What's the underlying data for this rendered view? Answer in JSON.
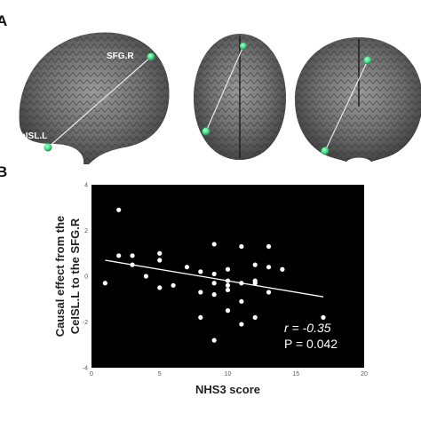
{
  "figure": {
    "panel_a_letter": "A",
    "panel_b_letter": "B"
  },
  "brain": {
    "region_top_label": "SFG.R",
    "region_bottom_label": "CeISL.L",
    "node_color": "#3ddc84",
    "background_color": "#000000"
  },
  "chart_data": {
    "type": "scatter",
    "xlabel": "NHS3 score",
    "ylabel_line1": "Causal effect from the",
    "ylabel_line2": "CeISL.L to the SFG.R",
    "xlim": [
      0,
      20
    ],
    "ylim": [
      -4,
      4
    ],
    "xticks": [
      "0",
      "5",
      "10",
      "15",
      "20"
    ],
    "yticks": [
      "4",
      "2",
      "0",
      "-2",
      "-4"
    ],
    "point_color": "#ffffff",
    "background": "#000000",
    "regression": {
      "x1": 1,
      "y1": 0.7,
      "x2": 17,
      "y2": -0.9
    },
    "stat_r": "r = -0.35",
    "stat_p": "P = 0.042",
    "points": [
      [
        1,
        -0.3
      ],
      [
        2,
        2.9
      ],
      [
        2,
        0.9
      ],
      [
        3,
        0.9
      ],
      [
        3,
        0.5
      ],
      [
        4,
        0
      ],
      [
        5,
        1
      ],
      [
        5,
        0.7
      ],
      [
        5,
        -0.5
      ],
      [
        6,
        -0.4
      ],
      [
        7,
        0.4
      ],
      [
        8,
        0.2
      ],
      [
        8,
        -0.7
      ],
      [
        8,
        -1.8
      ],
      [
        9,
        1.4
      ],
      [
        9,
        0.1
      ],
      [
        9,
        -0.3
      ],
      [
        9,
        -0.8
      ],
      [
        9,
        -2.8
      ],
      [
        10,
        0.3
      ],
      [
        10,
        -0.4
      ],
      [
        10,
        -0.6
      ],
      [
        10,
        -1.5
      ],
      [
        10,
        -0.2
      ],
      [
        11,
        1.3
      ],
      [
        11,
        -0.3
      ],
      [
        11,
        -1.1
      ],
      [
        11,
        -2.1
      ],
      [
        12,
        0.5
      ],
      [
        12,
        -0.2
      ],
      [
        12,
        -0.3
      ],
      [
        12,
        -1.8
      ],
      [
        13,
        1.3
      ],
      [
        13,
        0.4
      ],
      [
        13,
        -0.7
      ],
      [
        14,
        0.3
      ],
      [
        17,
        -1.8
      ]
    ]
  }
}
